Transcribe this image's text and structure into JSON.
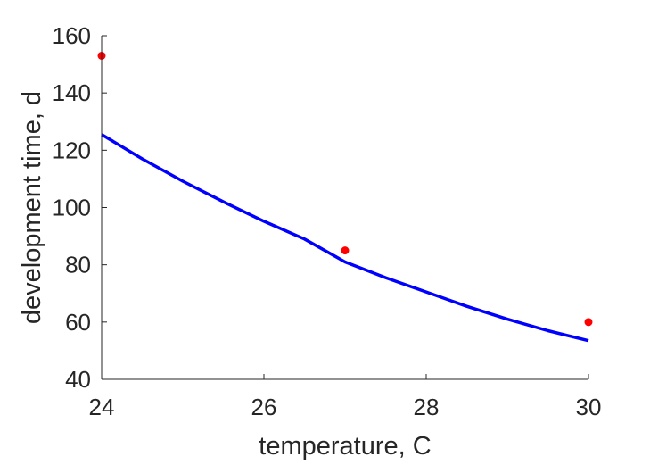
{
  "chart_data": {
    "type": "scatter",
    "xlabel": "temperature, C",
    "ylabel": "development time, d",
    "xlim": [
      24,
      30
    ],
    "ylim": [
      40,
      160
    ],
    "xticks": [
      24,
      26,
      28,
      30
    ],
    "yticks": [
      40,
      60,
      80,
      100,
      120,
      140,
      160
    ],
    "grid": false,
    "box": false,
    "series": [
      {
        "kind": "scatter",
        "color": "#ff0000",
        "points": [
          {
            "x": 24,
            "y": 153
          },
          {
            "x": 27,
            "y": 85
          },
          {
            "x": 30,
            "y": 60
          }
        ]
      },
      {
        "kind": "line",
        "color": "#0000ff",
        "points": [
          {
            "x": 24.0,
            "y": 125.5
          },
          {
            "x": 24.5,
            "y": 117.0
          },
          {
            "x": 25.0,
            "y": 109.2
          },
          {
            "x": 25.5,
            "y": 102.0
          },
          {
            "x": 26.0,
            "y": 95.2
          },
          {
            "x": 26.5,
            "y": 89.0
          },
          {
            "x": 27.0,
            "y": 81.0
          },
          {
            "x": 27.5,
            "y": 75.5
          },
          {
            "x": 28.0,
            "y": 70.5
          },
          {
            "x": 28.5,
            "y": 65.5
          },
          {
            "x": 29.0,
            "y": 61.0
          },
          {
            "x": 29.5,
            "y": 57.0
          },
          {
            "x": 30.0,
            "y": 53.5
          }
        ]
      }
    ]
  }
}
